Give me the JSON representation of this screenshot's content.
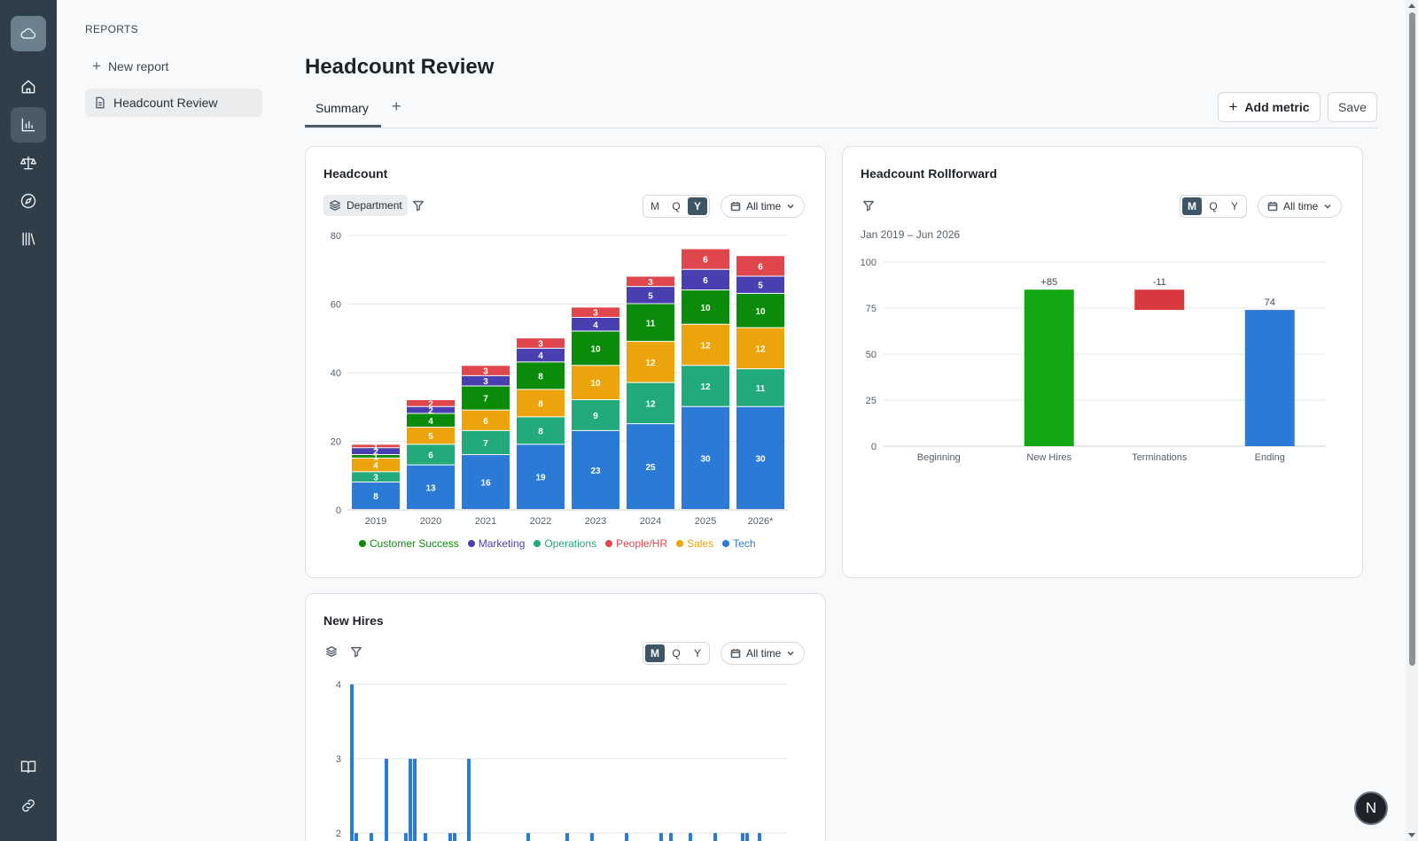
{
  "sidebar": {
    "section_title": "REPORTS",
    "new_report_label": "New report",
    "items": [
      {
        "label": "Headcount Review"
      }
    ]
  },
  "page": {
    "title": "Headcount Review",
    "tabs": [
      {
        "label": "Summary"
      }
    ],
    "add_tab_label": "+",
    "add_metric_label": "Add metric",
    "save_label": "Save"
  },
  "icons": [
    "cloud-icon",
    "home-icon",
    "bar-chart-icon",
    "scale-icon",
    "compass-icon",
    "library-icon",
    "book-icon",
    "link-icon"
  ],
  "avatar_initial": "N",
  "cards": {
    "headcount": {
      "title": "Headcount",
      "group_by_label": "Department",
      "granularity": [
        "M",
        "Q",
        "Y"
      ],
      "selected_granularity": "Y",
      "range_label": "All time"
    },
    "rollforward": {
      "title": "Headcount Rollforward",
      "granularity": [
        "M",
        "Q",
        "Y"
      ],
      "selected_granularity": "M",
      "range_label": "All time",
      "period_label": "Jan 2019 – Jun 2026"
    },
    "new_hires": {
      "title": "New Hires",
      "granularity": [
        "M",
        "Q",
        "Y"
      ],
      "selected_granularity": "M",
      "range_label": "All time"
    }
  },
  "chart_data": [
    {
      "type": "bar",
      "stacked": true,
      "title": "Headcount",
      "categories": [
        "2019",
        "2020",
        "2021",
        "2022",
        "2023",
        "2024",
        "2025",
        "2026*"
      ],
      "ylim": [
        0,
        80
      ],
      "yticks": [
        0,
        20,
        40,
        60,
        80
      ],
      "grid": true,
      "legend_position": "bottom",
      "series": [
        {
          "name": "Tech",
          "color": "#2b7bd6",
          "values": [
            8,
            13,
            16,
            19,
            23,
            25,
            30,
            30
          ]
        },
        {
          "name": "Operations",
          "color": "#22aa7a",
          "values": [
            3,
            6,
            7,
            8,
            9,
            12,
            12,
            11
          ]
        },
        {
          "name": "Sales",
          "color": "#eba40c",
          "values": [
            4,
            5,
            6,
            8,
            10,
            12,
            12,
            12
          ]
        },
        {
          "name": "Customer Success",
          "color": "#0a8c0a",
          "values": [
            1,
            4,
            7,
            8,
            10,
            11,
            10,
            10
          ]
        },
        {
          "name": "Marketing",
          "color": "#4a3fb0",
          "values": [
            2,
            2,
            3,
            4,
            4,
            5,
            6,
            5
          ]
        },
        {
          "name": "People/HR",
          "color": "#e0474c",
          "values": [
            1,
            2,
            3,
            3,
            3,
            3,
            6,
            6
          ]
        }
      ],
      "legend_order": [
        "Customer Success",
        "Marketing",
        "Operations",
        "People/HR",
        "Sales",
        "Tech"
      ]
    },
    {
      "type": "bar",
      "subtype": "waterfall",
      "title": "Headcount Rollforward",
      "categories": [
        "Beginning",
        "New Hires",
        "Terminations",
        "Ending"
      ],
      "values": [
        0,
        85,
        -11,
        74
      ],
      "labels": [
        "",
        "+85",
        "-11",
        "74"
      ],
      "colors": [
        "#2b7bd6",
        "#13a813",
        "#d8393e",
        "#2b7bd6"
      ],
      "ylim": [
        0,
        100
      ],
      "yticks": [
        0,
        25,
        50,
        75,
        100
      ],
      "grid": true
    },
    {
      "type": "bar",
      "title": "New Hires",
      "ylim": [
        2,
        4
      ],
      "yticks": [
        2,
        3,
        4
      ],
      "grid": true,
      "color": "#2b7bd6",
      "values": [
        4,
        2,
        2,
        3,
        2,
        3,
        3,
        2,
        2,
        2,
        3,
        2,
        2,
        2,
        2,
        2,
        2,
        2,
        2,
        2,
        2,
        2,
        2
      ]
    }
  ]
}
